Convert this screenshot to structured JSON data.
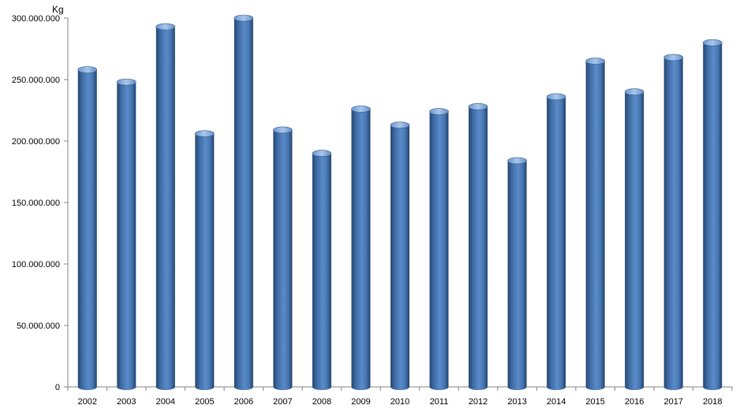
{
  "chart_data": {
    "type": "bar",
    "title": "",
    "xlabel": "",
    "ylabel": "Kg",
    "categories": [
      "2002",
      "2003",
      "2004",
      "2005",
      "2006",
      "2007",
      "2008",
      "2009",
      "2010",
      "2011",
      "2012",
      "2013",
      "2014",
      "2015",
      "2016",
      "2017",
      "2018"
    ],
    "values": [
      258000000,
      248000000,
      293000000,
      206000000,
      300000000,
      209000000,
      190000000,
      226000000,
      213000000,
      224000000,
      228000000,
      184000000,
      236000000,
      265000000,
      240000000,
      268000000,
      280000000
    ],
    "ylim": [
      0,
      300000000
    ],
    "yticks": [
      0,
      50000000,
      100000000,
      150000000,
      200000000,
      250000000,
      300000000
    ],
    "ytick_labels": [
      "0",
      "50.000.000",
      "100.000.000",
      "150.000.000",
      "200.000.000",
      "250.000.000",
      "300.000.000"
    ],
    "grid": false,
    "legend": "none",
    "bar_style": "3d-cylinder",
    "colors": {
      "bar_main": "#4f81bd",
      "bar_dark": "#2a4f7e",
      "bar_light": "#8fb3e0",
      "axis": "#868686"
    }
  }
}
